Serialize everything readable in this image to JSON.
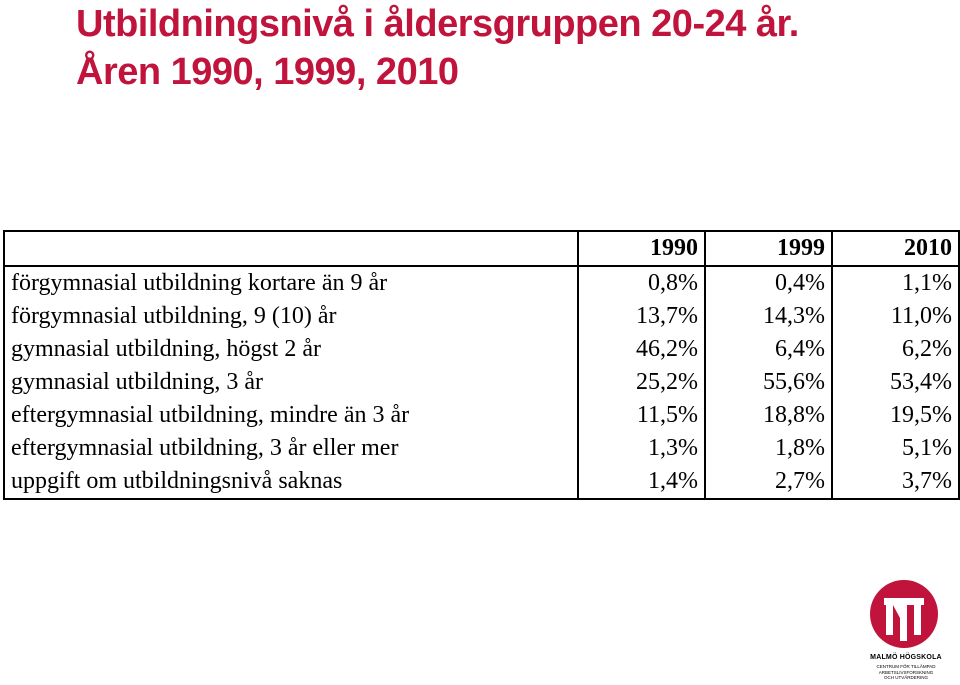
{
  "title": {
    "line1": "Utbildningsnivå i åldersgruppen 20-24 år.",
    "line2": "Åren 1990, 1999, 2010"
  },
  "table": {
    "columns": [
      "",
      "1990",
      "1999",
      "2010"
    ],
    "rows": [
      {
        "label": "förgymnasial utbildning kortare än 9 år",
        "v1990": "0,8%",
        "v1999": "0,4%",
        "v2010": "1,1%"
      },
      {
        "label": "förgymnasial utbildning, 9 (10) år",
        "v1990": "13,7%",
        "v1999": "14,3%",
        "v2010": "11,0%"
      },
      {
        "label": "gymnasial utbildning, högst 2 år",
        "v1990": "46,2%",
        "v1999": "6,4%",
        "v2010": "6,2%"
      },
      {
        "label": "gymnasial utbildning, 3 år",
        "v1990": "25,2%",
        "v1999": "55,6%",
        "v2010": "53,4%"
      },
      {
        "label": "eftergymnasial utbildning, mindre än 3 år",
        "v1990": "11,5%",
        "v1999": "18,8%",
        "v2010": "19,5%"
      },
      {
        "label": "eftergymnasial utbildning, 3 år eller mer",
        "v1990": "1,3%",
        "v1999": "1,8%",
        "v2010": "5,1%"
      },
      {
        "label": "uppgift om utbildningsnivå saknas",
        "v1990": "1,4%",
        "v1999": "2,7%",
        "v2010": "3,7%"
      }
    ]
  },
  "logo": {
    "name": "MALMÖ HÖGSKOLA",
    "subtitle_lines": [
      "CENTRUM FÖR TILLÄMPAD",
      "ARBETSLIVSFORSKNING",
      "OCH UTVÄRDERING"
    ],
    "color": "#c0143c"
  },
  "colors": {
    "title": "#c0143c",
    "text": "#000000",
    "background": "#ffffff"
  }
}
